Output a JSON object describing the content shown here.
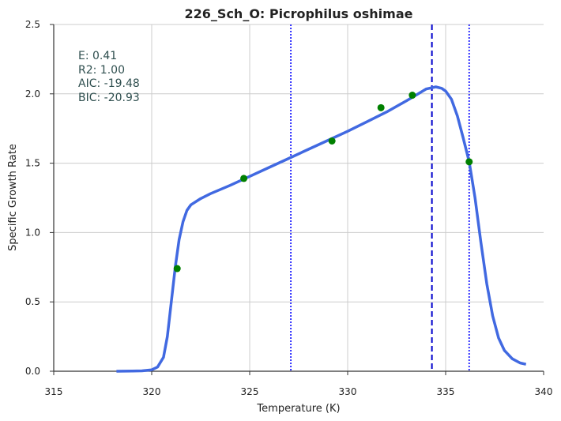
{
  "chart_data": {
    "type": "line",
    "title": "226_Sch_O: Picrophilus oshimae",
    "xlabel": "Temperature (K)",
    "ylabel": "Specific Growth Rate",
    "xlim": [
      315,
      340
    ],
    "ylim": [
      0,
      2.5
    ],
    "x_ticks": [
      "315",
      "320",
      "325",
      "330",
      "335",
      "340"
    ],
    "y_ticks": [
      "0.0",
      "0.5",
      "1.0",
      "1.5",
      "2.0",
      "2.5"
    ],
    "grid": true,
    "stats": [
      "E:  0.41",
      "R2:  1.00",
      "AIC: -19.48",
      "BIC: -20.93"
    ],
    "fit_curve": {
      "color": "#4169e1",
      "points": [
        [
          318.2,
          0.0
        ],
        [
          319.0,
          0.001
        ],
        [
          319.5,
          0.003
        ],
        [
          320.0,
          0.01
        ],
        [
          320.3,
          0.03
        ],
        [
          320.6,
          0.1
        ],
        [
          320.8,
          0.25
        ],
        [
          321.0,
          0.5
        ],
        [
          321.2,
          0.75
        ],
        [
          321.4,
          0.95
        ],
        [
          321.6,
          1.08
        ],
        [
          321.8,
          1.16
        ],
        [
          322.0,
          1.2
        ],
        [
          322.5,
          1.245
        ],
        [
          323.0,
          1.28
        ],
        [
          324.0,
          1.34
        ],
        [
          325.0,
          1.405
        ],
        [
          326.0,
          1.47
        ],
        [
          327.0,
          1.535
        ],
        [
          328.0,
          1.6
        ],
        [
          329.0,
          1.665
        ],
        [
          330.0,
          1.73
        ],
        [
          331.0,
          1.8
        ],
        [
          332.0,
          1.87
        ],
        [
          333.0,
          1.95
        ],
        [
          333.6,
          2.0
        ],
        [
          334.0,
          2.035
        ],
        [
          334.5,
          2.05
        ],
        [
          334.8,
          2.04
        ],
        [
          335.0,
          2.02
        ],
        [
          335.3,
          1.96
        ],
        [
          335.6,
          1.84
        ],
        [
          335.9,
          1.68
        ],
        [
          336.2,
          1.51
        ],
        [
          336.5,
          1.25
        ],
        [
          336.8,
          0.93
        ],
        [
          337.1,
          0.63
        ],
        [
          337.4,
          0.4
        ],
        [
          337.7,
          0.24
        ],
        [
          338.0,
          0.15
        ],
        [
          338.4,
          0.09
        ],
        [
          338.8,
          0.06
        ],
        [
          339.1,
          0.05
        ]
      ]
    },
    "observations": {
      "color": "#008000",
      "points": [
        [
          321.3,
          0.74
        ],
        [
          324.7,
          1.39
        ],
        [
          329.2,
          1.66
        ],
        [
          331.7,
          1.9
        ],
        [
          333.3,
          1.99
        ],
        [
          336.2,
          1.51
        ]
      ]
    },
    "vlines": [
      {
        "x": 334.3,
        "style": "dashed",
        "color": "#0000cc"
      },
      {
        "x": 327.1,
        "style": "dotted",
        "color": "#0000ff"
      },
      {
        "x": 336.2,
        "style": "dotted",
        "color": "#0000ff"
      }
    ]
  }
}
